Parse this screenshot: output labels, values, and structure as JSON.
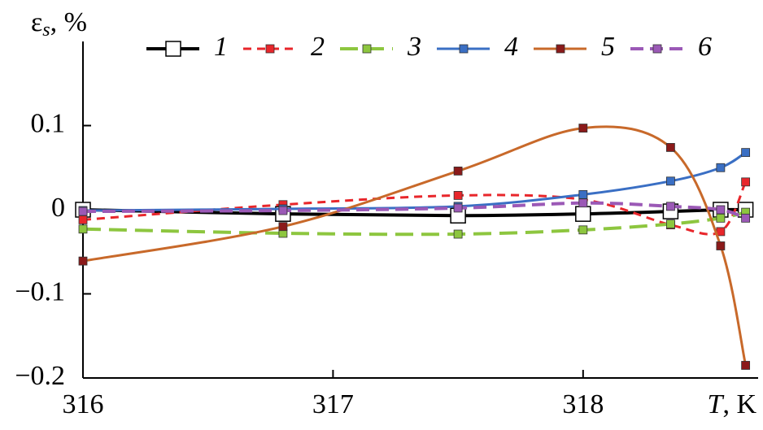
{
  "chart_data": {
    "type": "line",
    "y_label": {
      "symbol": "ε",
      "subscript": "s",
      "unit": ", %"
    },
    "x_label": {
      "symbol": "T",
      "unit": ", K"
    },
    "xlim": [
      316,
      318.7
    ],
    "xticks": [
      316,
      317,
      318
    ],
    "ylim": [
      -0.2,
      0.2
    ],
    "yticks": [
      {
        "value": -0.2,
        "label": "−0.2"
      },
      {
        "value": -0.1,
        "label": "−0.1"
      },
      0,
      0.1
    ],
    "x": [
      316,
      316.8,
      317.5,
      318,
      318.35,
      318.55,
      318.65
    ],
    "legend": "top",
    "series": [
      {
        "name": "1",
        "color": "#000000",
        "marker_color": "#ffffff",
        "values": [
          0,
          -0.005,
          -0.007,
          -0.005,
          -0.002,
          0,
          0
        ]
      },
      {
        "name": "2",
        "color": "#e8262b",
        "marker_color": "#e8262b",
        "values": [
          -0.012,
          0.006,
          0.017,
          0.012,
          -0.018,
          -0.026,
          0.033
        ]
      },
      {
        "name": "3",
        "color": "#8dc63f",
        "marker_color": "#8dc63f",
        "values": [
          -0.023,
          -0.028,
          -0.029,
          -0.024,
          -0.017,
          -0.01,
          -0.003
        ]
      },
      {
        "name": "4",
        "color": "#3a6fc4",
        "marker_color": "#3a6fc4",
        "values": [
          -0.001,
          0.001,
          0.004,
          0.018,
          0.034,
          0.05,
          0.068
        ]
      },
      {
        "name": "5",
        "color": "#c8692a",
        "marker_color": "#8b1a1a",
        "values": [
          -0.061,
          -0.02,
          0.046,
          0.097,
          0.074,
          -0.043,
          -0.185
        ]
      },
      {
        "name": "6",
        "color": "#9b59b6",
        "marker_color": "#9b59b6",
        "values": [
          -0.002,
          -0.001,
          0.002,
          0.008,
          0.004,
          0,
          -0.01
        ]
      }
    ]
  }
}
